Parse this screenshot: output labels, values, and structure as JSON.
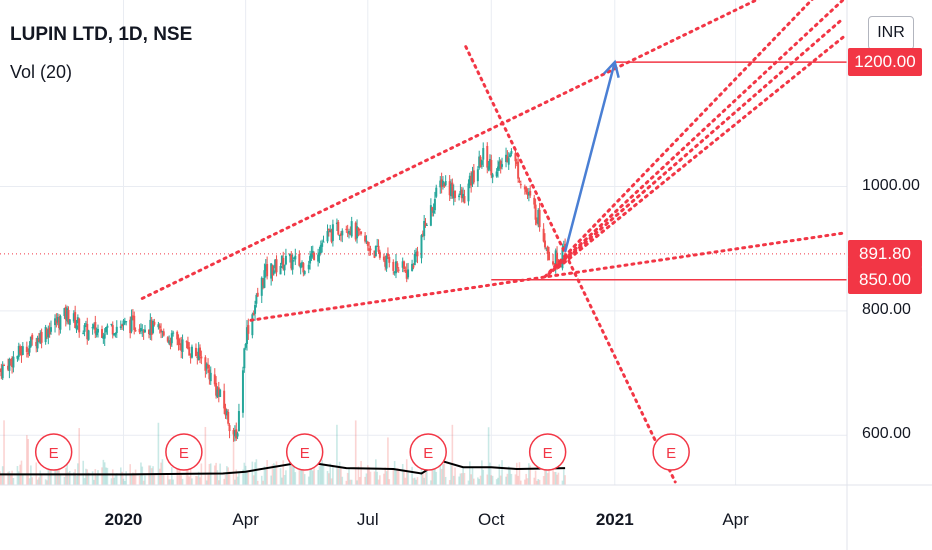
{
  "header": {
    "symbol_title": "LUPIN LTD, 1D, NSE",
    "volume_label": "Vol (20)"
  },
  "toolbar": {
    "currency": "INR"
  },
  "colors": {
    "up": "#26a69a",
    "down": "#ef5350",
    "annotation": "#f23645",
    "arrow": "#4a7fd4",
    "volume_ma": "#000000",
    "grid": "#e9ecf2"
  },
  "chart_data": {
    "type": "candlestick",
    "title": "LUPIN LTD, 1D, NSE",
    "xlabel": "",
    "ylabel": "",
    "x_ticks": [
      {
        "label": "2020",
        "date": "2020-01-01",
        "bold": true
      },
      {
        "label": "Apr",
        "date": "2020-04-01",
        "bold": false
      },
      {
        "label": "Jul",
        "date": "2020-07-01",
        "bold": false
      },
      {
        "label": "Oct",
        "date": "2020-10-01",
        "bold": false
      },
      {
        "label": "2021",
        "date": "2021-01-01",
        "bold": true
      },
      {
        "label": "Apr",
        "date": "2021-04-01",
        "bold": false
      }
    ],
    "y_ticks": [
      600,
      800,
      1000
    ],
    "y_tick_labels": [
      "600.00",
      "800.00",
      "1000.00"
    ],
    "ylim": [
      520,
      1300
    ],
    "price_tags": [
      {
        "label": "1200.00",
        "value": 1200
      },
      {
        "label": "891.80",
        "value": 891.8
      },
      {
        "label": "850.00",
        "value": 850
      }
    ],
    "horizontal_levels": [
      {
        "value": 1200,
        "from": "2021-01-01"
      },
      {
        "value": 850,
        "from": "2020-10-01"
      }
    ],
    "last_price": 891.8,
    "price_path": [
      {
        "date": "2019-10-01",
        "price": 705
      },
      {
        "date": "2019-10-20",
        "price": 740
      },
      {
        "date": "2019-11-05",
        "price": 770
      },
      {
        "date": "2019-11-20",
        "price": 795
      },
      {
        "date": "2019-12-05",
        "price": 765
      },
      {
        "date": "2019-12-25",
        "price": 775
      },
      {
        "date": "2020-01-15",
        "price": 780
      },
      {
        "date": "2020-02-01",
        "price": 760
      },
      {
        "date": "2020-02-15",
        "price": 745
      },
      {
        "date": "2020-03-01",
        "price": 720
      },
      {
        "date": "2020-03-15",
        "price": 650
      },
      {
        "date": "2020-03-25",
        "price": 590
      },
      {
        "date": "2020-04-01",
        "price": 760
      },
      {
        "date": "2020-04-15",
        "price": 860
      },
      {
        "date": "2020-04-30",
        "price": 880
      },
      {
        "date": "2020-05-15",
        "price": 875
      },
      {
        "date": "2020-06-01",
        "price": 920
      },
      {
        "date": "2020-06-15",
        "price": 940
      },
      {
        "date": "2020-07-01",
        "price": 905
      },
      {
        "date": "2020-07-15",
        "price": 880
      },
      {
        "date": "2020-08-01",
        "price": 860
      },
      {
        "date": "2020-08-15",
        "price": 950
      },
      {
        "date": "2020-08-25",
        "price": 1010
      },
      {
        "date": "2020-09-10",
        "price": 980
      },
      {
        "date": "2020-09-25",
        "price": 1050
      },
      {
        "date": "2020-10-05",
        "price": 1020
      },
      {
        "date": "2020-10-15",
        "price": 1060
      },
      {
        "date": "2020-10-25",
        "price": 1000
      },
      {
        "date": "2020-11-05",
        "price": 950
      },
      {
        "date": "2020-11-15",
        "price": 880
      },
      {
        "date": "2020-11-25",
        "price": 892
      }
    ],
    "volume_ma_path": [
      {
        "date": "2019-10-01",
        "value": 0.2
      },
      {
        "date": "2020-01-01",
        "value": 0.2
      },
      {
        "date": "2020-03-15",
        "value": 0.25
      },
      {
        "date": "2020-04-01",
        "value": 0.35
      },
      {
        "date": "2020-05-15",
        "value": 0.9
      },
      {
        "date": "2020-06-15",
        "value": 0.55
      },
      {
        "date": "2020-07-20",
        "value": 0.5
      },
      {
        "date": "2020-08-10",
        "value": 0.25
      },
      {
        "date": "2020-08-25",
        "value": 0.95
      },
      {
        "date": "2020-09-10",
        "value": 0.6
      },
      {
        "date": "2020-10-01",
        "value": 0.6
      },
      {
        "date": "2020-10-20",
        "value": 0.5
      },
      {
        "date": "2020-11-25",
        "value": 0.55
      }
    ],
    "earnings_markers": [
      {
        "label": "E",
        "date": "2019-11-10"
      },
      {
        "label": "E",
        "date": "2020-02-15"
      },
      {
        "label": "E",
        "date": "2020-05-15"
      },
      {
        "label": "E",
        "date": "2020-08-15"
      },
      {
        "label": "E",
        "date": "2020-11-12"
      },
      {
        "label": "E",
        "date": "2021-02-12"
      }
    ],
    "trendlines": [
      {
        "from": {
          "date": "2020-01-15",
          "price": 820
        },
        "to": {
          "date": "2021-05-15",
          "price": 1330
        }
      },
      {
        "from": {
          "date": "2020-04-05",
          "price": 785
        },
        "to": {
          "date": "2021-06-20",
          "price": 925
        }
      },
      {
        "from": {
          "date": "2020-09-12",
          "price": 1225
        },
        "to": {
          "date": "2021-02-15",
          "price": 525
        }
      },
      {
        "from": {
          "date": "2020-11-10",
          "price": 855
        },
        "to": {
          "date": "2021-06-10",
          "price": 1330
        }
      },
      {
        "from": {
          "date": "2020-11-13",
          "price": 860
        },
        "to": {
          "date": "2021-06-20",
          "price": 1300
        }
      },
      {
        "from": {
          "date": "2020-11-16",
          "price": 865
        },
        "to": {
          "date": "2021-06-20",
          "price": 1270
        }
      },
      {
        "from": {
          "date": "2020-11-20",
          "price": 870
        },
        "to": {
          "date": "2021-06-20",
          "price": 1240
        }
      }
    ],
    "projection_arrow": {
      "from": {
        "date": "2020-11-25",
        "price": 895
      },
      "to": {
        "date": "2021-01-01",
        "price": 1200
      }
    }
  }
}
